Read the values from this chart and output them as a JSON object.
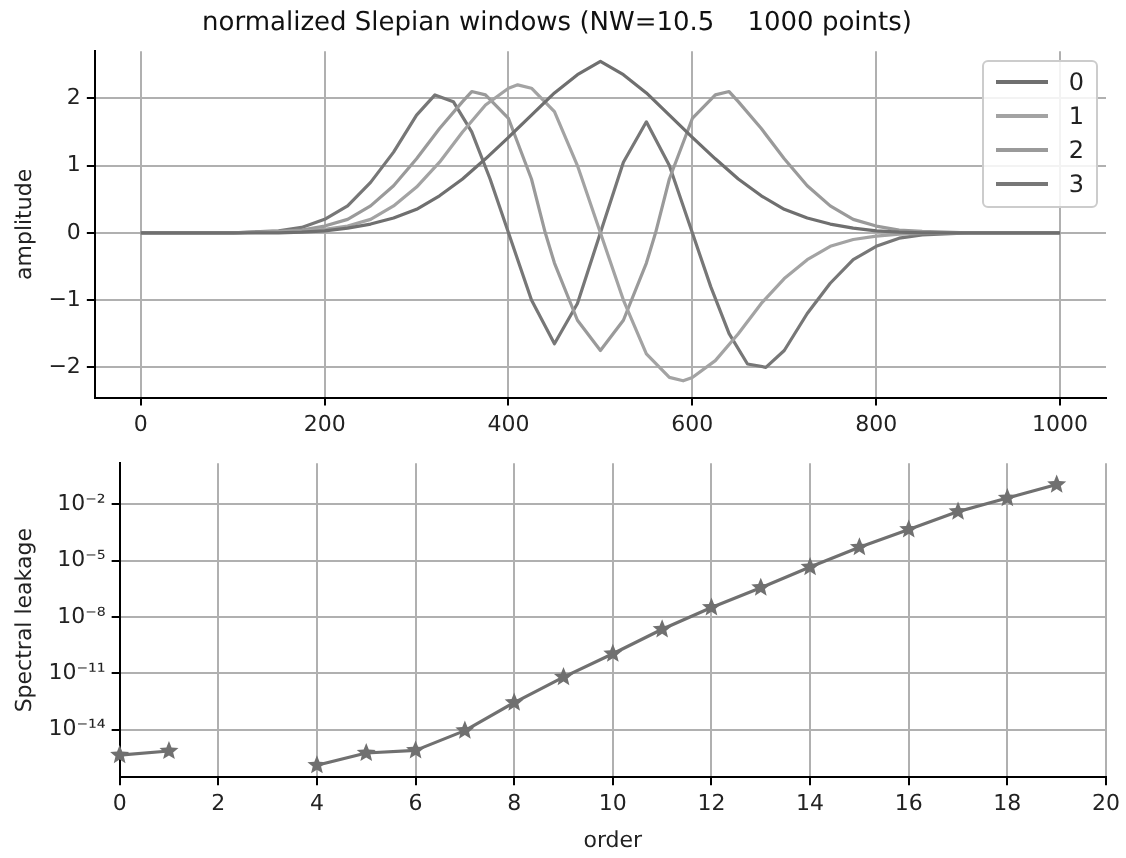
{
  "chart_data": [
    {
      "type": "line",
      "title": "normalized Slepian windows (NW=10.5    1000 points)",
      "ylabel": "amplitude",
      "xlim": [
        -50,
        1050
      ],
      "xticks": [
        0,
        200,
        400,
        600,
        800,
        1000
      ],
      "ylim": [
        -2.45,
        2.7
      ],
      "yticks": [
        {
          "value": -2,
          "label": "−2"
        },
        {
          "value": -1,
          "label": "−1"
        },
        0,
        1,
        2
      ],
      "grid": true,
      "legend": "top right",
      "series": [
        {
          "name": "0",
          "color": "#6f6f6f",
          "x": [
            0,
            25,
            50,
            75,
            100,
            125,
            150,
            175,
            200,
            225,
            250,
            275,
            300,
            325,
            350,
            375,
            400,
            425,
            450,
            475,
            500,
            525,
            550,
            575,
            600,
            625,
            650,
            675,
            700,
            725,
            750,
            775,
            800,
            825,
            850,
            875,
            900,
            925,
            950,
            975,
            1000
          ],
          "values": [
            0,
            0,
            0,
            0,
            0,
            0,
            0,
            0.01,
            0.03,
            0.07,
            0.13,
            0.22,
            0.35,
            0.55,
            0.8,
            1.1,
            1.42,
            1.75,
            2.08,
            2.35,
            2.55,
            2.35,
            2.08,
            1.75,
            1.42,
            1.1,
            0.8,
            0.55,
            0.35,
            0.22,
            0.13,
            0.07,
            0.03,
            0.01,
            0,
            0,
            0,
            0,
            0,
            0,
            0
          ]
        },
        {
          "name": "1",
          "color": "#a3a3a3",
          "x": [
            0,
            50,
            100,
            150,
            175,
            200,
            225,
            250,
            275,
            300,
            325,
            350,
            375,
            400,
            410,
            425,
            450,
            475,
            500,
            525,
            550,
            575,
            590,
            600,
            625,
            650,
            675,
            700,
            725,
            750,
            775,
            800,
            825,
            850,
            900,
            950,
            1000
          ],
          "values": [
            0,
            0,
            0,
            0.01,
            0.02,
            0.05,
            0.1,
            0.2,
            0.4,
            0.68,
            1.05,
            1.5,
            1.9,
            2.15,
            2.2,
            2.15,
            1.8,
            1.0,
            0,
            -1.0,
            -1.8,
            -2.15,
            -2.2,
            -2.15,
            -1.9,
            -1.5,
            -1.05,
            -0.68,
            -0.4,
            -0.2,
            -0.1,
            -0.05,
            -0.02,
            -0.01,
            0,
            0,
            0
          ]
        },
        {
          "name": "2",
          "color": "#9a9a9a",
          "x": [
            0,
            50,
            100,
            150,
            175,
            200,
            225,
            250,
            275,
            300,
            325,
            350,
            360,
            375,
            400,
            425,
            440,
            450,
            475,
            500,
            525,
            550,
            560,
            575,
            600,
            625,
            640,
            650,
            675,
            700,
            725,
            750,
            775,
            800,
            825,
            850,
            900,
            950,
            1000
          ],
          "values": [
            0,
            0,
            0,
            0.02,
            0.04,
            0.1,
            0.2,
            0.4,
            0.7,
            1.1,
            1.55,
            1.95,
            2.1,
            2.05,
            1.7,
            0.8,
            0,
            -0.45,
            -1.3,
            -1.75,
            -1.3,
            -0.45,
            0,
            0.8,
            1.7,
            2.05,
            2.1,
            1.95,
            1.55,
            1.1,
            0.7,
            0.4,
            0.2,
            0.1,
            0.04,
            0.02,
            0,
            0,
            0
          ]
        },
        {
          "name": "3",
          "color": "#777777",
          "x": [
            0,
            50,
            100,
            150,
            175,
            200,
            225,
            250,
            275,
            300,
            320,
            340,
            360,
            380,
            400,
            425,
            450,
            475,
            500,
            525,
            550,
            575,
            600,
            620,
            640,
            660,
            680,
            700,
            725,
            750,
            775,
            800,
            825,
            850,
            900,
            950,
            1000
          ],
          "values": [
            0,
            0,
            0,
            0.03,
            0.08,
            0.2,
            0.4,
            0.75,
            1.2,
            1.75,
            2.05,
            1.95,
            1.5,
            0.8,
            0,
            -1.0,
            -1.65,
            -1.05,
            0,
            1.05,
            1.65,
            1.0,
            0,
            -0.8,
            -1.5,
            -1.95,
            -2.0,
            -1.75,
            -1.2,
            -0.75,
            -0.4,
            -0.2,
            -0.08,
            -0.03,
            0,
            0,
            0
          ]
        }
      ]
    },
    {
      "type": "line",
      "xlabel": "order",
      "ylabel": "Spectral leakage",
      "log": "y",
      "xlim": [
        0,
        20
      ],
      "xticks": [
        0,
        2,
        4,
        6,
        8,
        10,
        12,
        14,
        16,
        18,
        20
      ],
      "ylim": [
        3e-17,
        1.5
      ],
      "yticks": [
        {
          "value": 1e-14,
          "label": "10⁻¹⁴"
        },
        {
          "value": 1e-11,
          "label": "10⁻¹¹"
        },
        {
          "value": 1e-08,
          "label": "10⁻⁸"
        },
        {
          "value": 1e-05,
          "label": "10⁻⁵"
        },
        {
          "value": 0.01,
          "label": "10⁻²"
        }
      ],
      "grid": true,
      "marker": "star",
      "series": [
        {
          "color": "#707070",
          "x": [
            0,
            1,
            2,
            3,
            4,
            5,
            6,
            7,
            8,
            9,
            10,
            11,
            12,
            13,
            14,
            15,
            16,
            17,
            18,
            19
          ],
          "values": [
            4.5e-16,
            7.4e-16,
            null,
            null,
            1.3e-16,
            5.8e-16,
            8e-16,
            9e-15,
            2.8e-13,
            6.3e-12,
            1.1e-10,
            2.2e-09,
            3.2e-08,
            3.6e-07,
            4.5e-06,
            5.1e-05,
            0.00045,
            0.004,
            0.021,
            0.11
          ]
        }
      ]
    }
  ]
}
